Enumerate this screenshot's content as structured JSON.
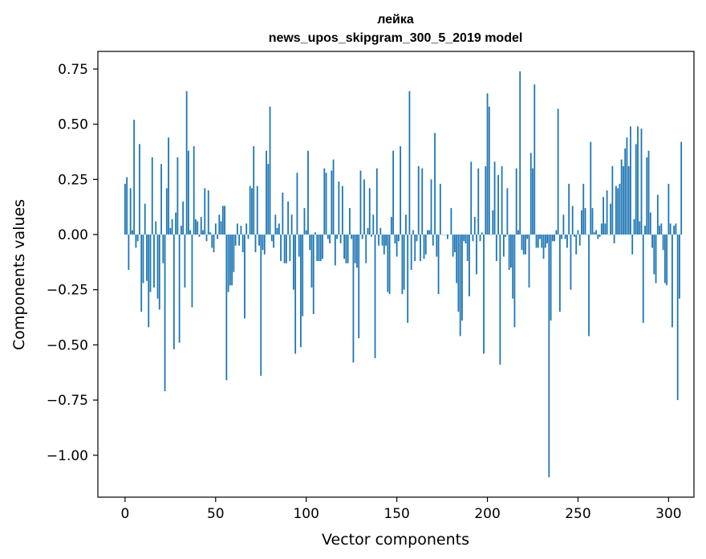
{
  "chart_data": {
    "type": "bar",
    "title": "лейка",
    "subtitle": "news_upos_skipgram_300_5_2019 model",
    "xlabel": "Vector components",
    "ylabel": "Components values",
    "xlim": [
      -15,
      314
    ],
    "ylim": [
      -1.19,
      0.83
    ],
    "xticks": [
      0,
      50,
      100,
      150,
      200,
      250,
      300
    ],
    "xtick_labels": [
      "0",
      "50",
      "100",
      "150",
      "200",
      "250",
      "300"
    ],
    "yticks": [
      0.75,
      0.5,
      0.25,
      0.0,
      -0.25,
      -0.5,
      -0.75,
      -1.0
    ],
    "ytick_labels": [
      "0.75",
      "0.50",
      "0.25",
      "0.00",
      "−0.25",
      "−0.50",
      "−0.75",
      "−1.00"
    ],
    "grid": false,
    "legend": "none",
    "bar_color": "#1f77b4",
    "values": [
      0.23,
      0.26,
      -0.16,
      0.21,
      0.02,
      0.52,
      -0.06,
      -0.03,
      0.41,
      -0.35,
      -0.22,
      0.14,
      -0.21,
      -0.42,
      -0.26,
      0.35,
      -0.24,
      0.06,
      -0.29,
      -0.34,
      0.32,
      -0.13,
      -0.71,
      0.21,
      0.44,
      0.03,
      0.07,
      -0.52,
      0.1,
      0.35,
      -0.49,
      0.04,
      0.15,
      -0.24,
      0.65,
      0.38,
      0.02,
      -0.33,
      0.4,
      0.07,
      0.06,
      -0.01,
      0.08,
      0.02,
      0.21,
      -0.03,
      0.2,
      0.01,
      -0.06,
      -0.08,
      0.05,
      -0.02,
      0.09,
      0.06,
      0.13,
      0.13,
      -0.66,
      -0.26,
      -0.23,
      -0.23,
      -0.17,
      -0.05,
      0.05,
      -0.05,
      0.04,
      -0.08,
      -0.38,
      0.05,
      -0.02,
      0.22,
      0.21,
      0.4,
      -0.08,
      0.22,
      -0.05,
      -0.64,
      -0.07,
      -0.09,
      0.38,
      0.32,
      0.58,
      -0.03,
      -0.06,
      0.09,
      0.03,
      0.05,
      -0.12,
      0.19,
      -0.13,
      -0.13,
      0.15,
      -0.12,
      0.09,
      -0.25,
      -0.54,
      0.28,
      -0.1,
      -0.51,
      -0.37,
      0.12,
      0.02,
      0.38,
      -0.07,
      -0.24,
      -0.36,
      0.01,
      -0.12,
      -0.12,
      -0.12,
      -0.11,
      0.3,
      0.28,
      -0.02,
      -0.04,
      0.29,
      0.34,
      -0.14,
      -0.02,
      0.24,
      -0.04,
      0.22,
      -0.11,
      -0.13,
      -0.13,
      0.12,
      -0.02,
      -0.58,
      -0.13,
      -0.15,
      -0.47,
      0.29,
      -0.02,
      0.25,
      -0.13,
      0.03,
      0.21,
      -0.01,
      0.09,
      -0.56,
      0.3,
      -0.05,
      0.03,
      -0.05,
      -0.09,
      -0.05,
      -0.26,
      -0.27,
      0.08,
      0.38,
      -0.04,
      -0.1,
      -0.03,
      0.4,
      -0.27,
      -0.25,
      0.09,
      -0.4,
      0.65,
      -0.16,
      0.02,
      -0.12,
      -0.03,
      0.31,
      -0.12,
      0.3,
      -0.11,
      -0.09,
      0.02,
      0.02,
      0.25,
      -0.05,
      0.46,
      -0.1,
      -0.27,
      0.23,
      0.0,
      0.0,
      0.0,
      -0.02,
      0.0,
      0.12,
      -0.1,
      -0.08,
      -0.22,
      -0.35,
      -0.46,
      -0.39,
      -0.03,
      -0.04,
      -0.12,
      -0.28,
      0.33,
      -0.03,
      0.08,
      -0.18,
      0.3,
      -0.03,
      0.01,
      -0.54,
      0.31,
      0.64,
      0.58,
      0.0,
      0.11,
      0.33,
      -0.12,
      0.27,
      -0.59,
      0.31,
      -0.1,
      -0.01,
      0.21,
      -0.16,
      -0.15,
      -0.29,
      -0.42,
      0.3,
      0.02,
      0.74,
      -0.07,
      -0.09,
      -0.09,
      -0.02,
      -0.24,
      0.37,
      0.3,
      0.68,
      -0.06,
      -0.06,
      -0.02,
      -0.06,
      -0.11,
      -0.06,
      -0.04,
      -1.1,
      -0.39,
      -0.03,
      -0.03,
      0.02,
      0.57,
      -0.35,
      -0.02,
      0.09,
      -0.02,
      -0.06,
      0.23,
      -0.25,
      0.13,
      -0.01,
      -0.09,
      0.02,
      -0.05,
      0.11,
      0.23,
      0.12,
      0.0,
      -0.46,
      0.42,
      0.12,
      0.01,
      0.02,
      -0.02,
      -0.01,
      0.05,
      0.17,
      0.05,
      0.2,
      0.0,
      0.14,
      0.31,
      -0.04,
      0.22,
      0.21,
      0.23,
      0.34,
      0.31,
      0.39,
      0.44,
      0.31,
      0.49,
      -0.09,
      0.07,
      0.41,
      0.49,
      0.06,
      0.48,
      -0.4,
      0.04,
      0.35,
      0.38,
      0.1,
      -0.06,
      -0.18,
      -0.22,
      0.18,
      0.04,
      0.05,
      -0.07,
      -0.22,
      -0.23,
      0.23,
      0.05,
      -0.42,
      0.04,
      0.05,
      -0.75,
      -0.29,
      0.42
    ]
  }
}
